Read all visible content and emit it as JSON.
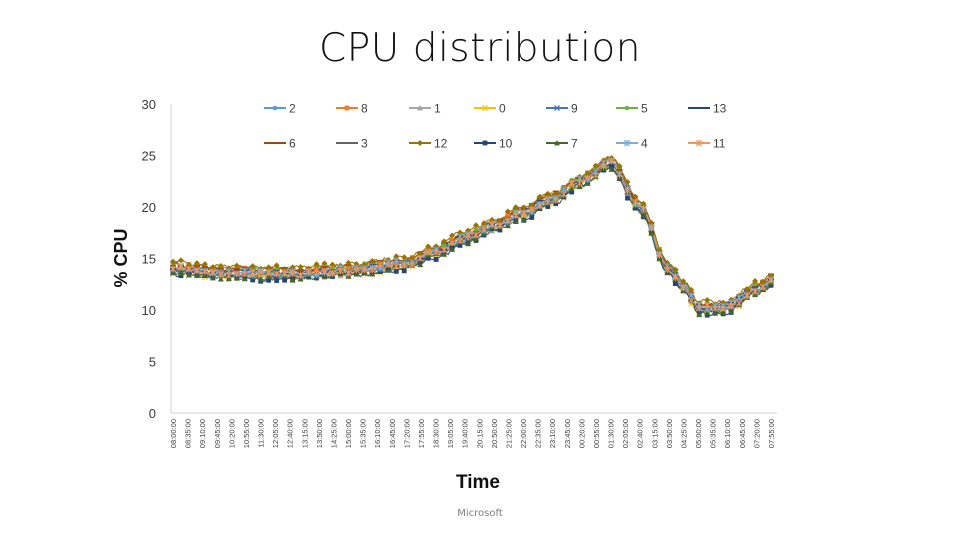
{
  "slide": {
    "title": "CPU distribution",
    "footer": "Microsoft"
  },
  "chart_data": {
    "type": "line",
    "title": "CPU distribution",
    "xlabel": "Time",
    "ylabel": "% CPU",
    "ylim": [
      0,
      30
    ],
    "yticks": [
      0,
      5,
      10,
      15,
      20,
      25,
      30
    ],
    "grid": false,
    "legend_position": "top (inside plot, 2 rows)",
    "x_tick_labels": [
      "08:00:00",
      "08:35:00",
      "09:10:00",
      "09:45:00",
      "10:20:00",
      "10:55:00",
      "11:30:00",
      "12:05:00",
      "12:40:00",
      "13:15:00",
      "13:50:00",
      "14:25:00",
      "15:00:00",
      "15:35:00",
      "16:10:00",
      "16:45:00",
      "17:20:00",
      "17:55:00",
      "18:30:00",
      "19:05:00",
      "19:40:00",
      "20:15:00",
      "20:50:00",
      "21:25:00",
      "22:00:00",
      "22:35:00",
      "23:10:00",
      "23:45:00",
      "00:20:00",
      "00:55:00",
      "01:30:00",
      "02:05:00",
      "02:40:00",
      "03:15:00",
      "03:50:00",
      "04:25:00",
      "05:00:00",
      "05:35:00",
      "06:10:00",
      "06:45:00",
      "07:20:00",
      "07:55:00"
    ],
    "base_profile": {
      "x_index": [
        0,
        4,
        8,
        12,
        16,
        18,
        20,
        22,
        24,
        26,
        28,
        30,
        32,
        34,
        35,
        36,
        38,
        40,
        41
      ],
      "values": [
        14.0,
        13.6,
        13.5,
        13.8,
        14.5,
        15.6,
        17.0,
        18.2,
        19.4,
        20.8,
        22.6,
        24.2,
        20.0,
        14.0,
        12.3,
        10.2,
        10.3,
        12.0,
        12.8
      ]
    },
    "series": [
      {
        "name": "2",
        "offset": -0.15,
        "color": "#5b9bd5",
        "marker": "circle"
      },
      {
        "name": "8",
        "offset": 0.35,
        "color": "#ed7d31",
        "marker": "square"
      },
      {
        "name": "1",
        "offset": -0.35,
        "color": "#a5a5a5",
        "marker": "triangle"
      },
      {
        "name": "0",
        "offset": -0.45,
        "color": "#ffc000",
        "marker": "x"
      },
      {
        "name": "9",
        "offset": 0.05,
        "color": "#4472c4",
        "marker": "x"
      },
      {
        "name": "5",
        "offset": 0.45,
        "color": "#70ad47",
        "marker": "circle"
      },
      {
        "name": "13",
        "offset": 0.2,
        "color": "#264478",
        "marker": "dash"
      },
      {
        "name": "6",
        "offset": 0.55,
        "color": "#9e480e",
        "marker": "dash"
      },
      {
        "name": "3",
        "offset": -0.25,
        "color": "#636363",
        "marker": "dash"
      },
      {
        "name": "12",
        "offset": 0.8,
        "color": "#997300",
        "marker": "diamond"
      },
      {
        "name": "10",
        "offset": -0.7,
        "color": "#264478",
        "marker": "square"
      },
      {
        "name": "7",
        "offset": -0.55,
        "color": "#43682b",
        "marker": "triangle"
      },
      {
        "name": "4",
        "offset": 0.1,
        "color": "#7cafdd",
        "marker": "star"
      },
      {
        "name": "11",
        "offset": 0.0,
        "color": "#f1975a",
        "marker": "star"
      }
    ]
  }
}
